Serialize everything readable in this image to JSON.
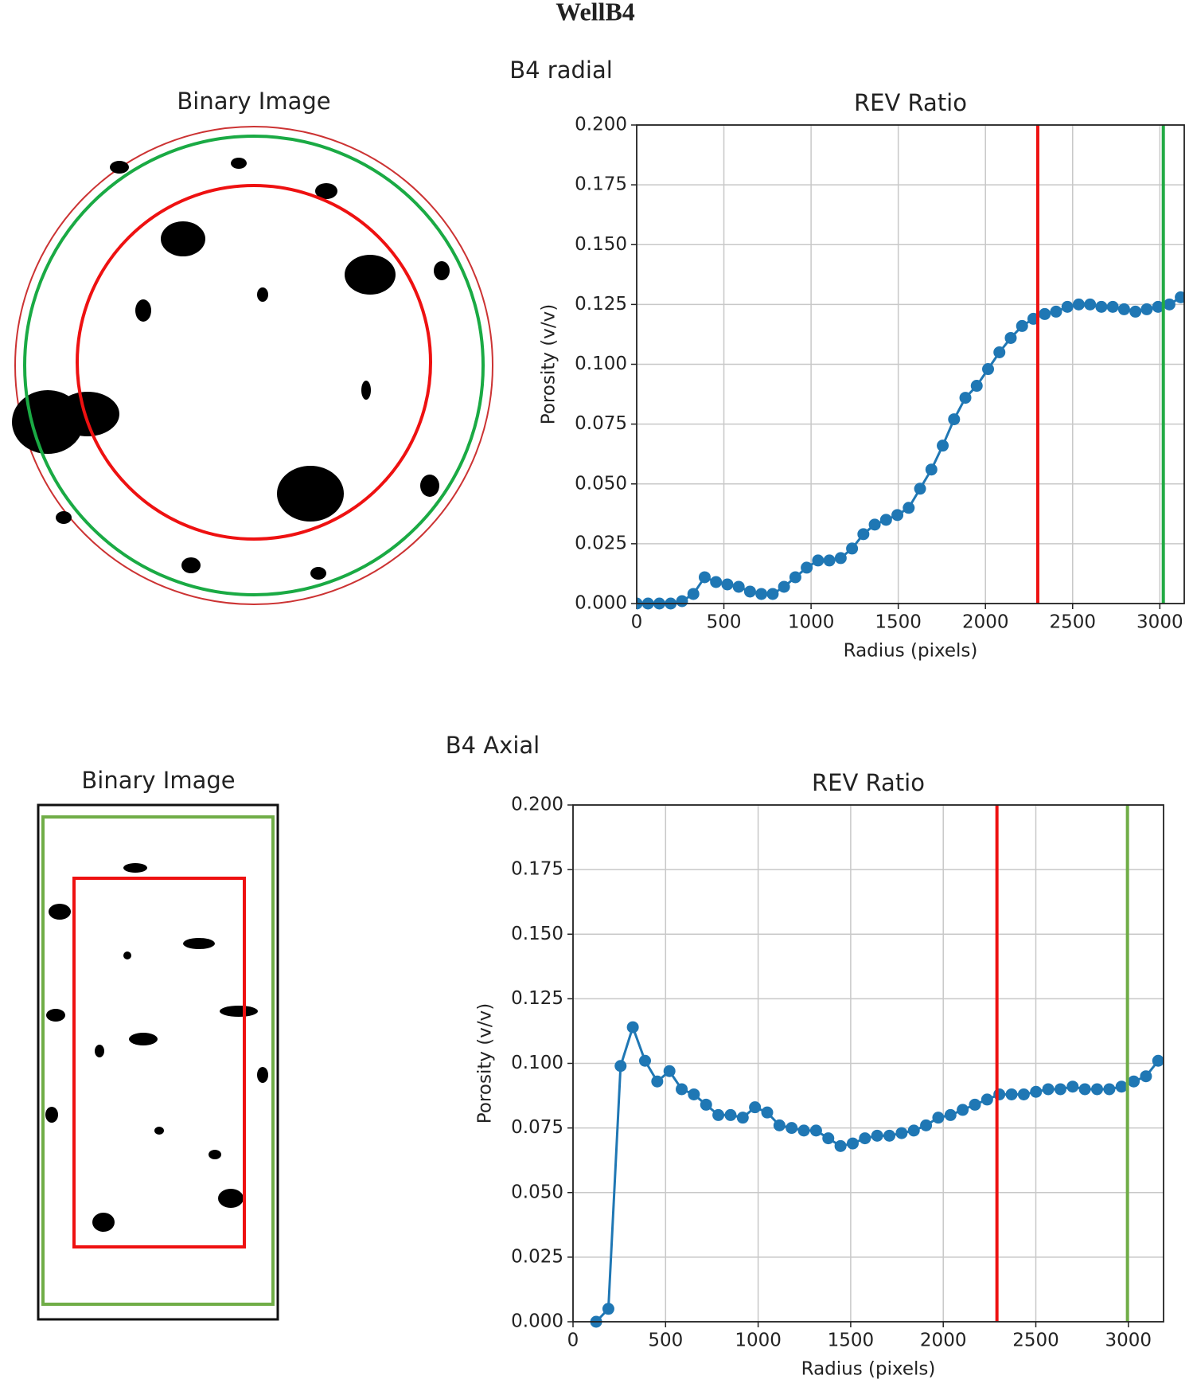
{
  "title": "WellB4",
  "panels": [
    {
      "title": "B4 radial",
      "image_title": "Binary Image"
    },
    {
      "title": "B4 Axial",
      "image_title": "Binary Image"
    }
  ],
  "chart_data": [
    {
      "type": "line",
      "title": "REV Ratio",
      "x_label": "Radius (pixels)",
      "y_label": "Porosity (v/v)",
      "x": [
        0,
        65,
        130,
        195,
        260,
        325,
        390,
        455,
        520,
        585,
        650,
        715,
        780,
        845,
        910,
        975,
        1040,
        1105,
        1170,
        1235,
        1300,
        1365,
        1430,
        1495,
        1560,
        1625,
        1690,
        1755,
        1820,
        1885,
        1950,
        2015,
        2080,
        2145,
        2210,
        2275,
        2340,
        2405,
        2470,
        2535,
        2600,
        2665,
        2730,
        2795,
        2860,
        2925,
        2990,
        3055,
        3120
      ],
      "values": [
        0,
        0,
        0,
        0,
        0.001,
        0.004,
        0.011,
        0.009,
        0.008,
        0.007,
        0.005,
        0.004,
        0.004,
        0.007,
        0.011,
        0.015,
        0.018,
        0.018,
        0.019,
        0.023,
        0.029,
        0.033,
        0.035,
        0.037,
        0.04,
        0.048,
        0.056,
        0.066,
        0.077,
        0.086,
        0.091,
        0.098,
        0.105,
        0.111,
        0.116,
        0.119,
        0.121,
        0.122,
        0.124,
        0.125,
        0.125,
        0.124,
        0.124,
        0.123,
        0.122,
        0.123,
        0.124,
        0.125,
        0.128
      ],
      "color": "#1f77b4",
      "xlim": [
        0,
        3140
      ],
      "xticks": [
        0,
        500,
        1000,
        1500,
        2000,
        2500,
        3000
      ],
      "ylim": [
        0,
        0.2
      ],
      "yticks": [
        {
          "value": 0,
          "label": "0.000"
        },
        {
          "value": 0.025,
          "label": "0.025"
        },
        {
          "value": 0.05,
          "label": "0.050"
        },
        {
          "value": 0.075,
          "label": "0.075"
        },
        {
          "value": 0.1,
          "label": "0.100"
        },
        {
          "value": 0.125,
          "label": "0.125"
        },
        {
          "value": 0.15,
          "label": "0.150"
        },
        {
          "value": 0.175,
          "label": "0.175"
        },
        {
          "value": 0.2,
          "label": "0.200"
        }
      ],
      "grid": true,
      "vlines": [
        {
          "value": 2300,
          "color": "#ee1111"
        },
        {
          "value": 3020,
          "color": "#22aa44"
        }
      ]
    },
    {
      "type": "line",
      "title": "REV Ratio",
      "x_label": "Radius (pixels)",
      "y_label": "Porosity (v/v)",
      "x": [
        125,
        191,
        257,
        323,
        389,
        455,
        521,
        587,
        653,
        719,
        785,
        851,
        917,
        983,
        1049,
        1115,
        1181,
        1247,
        1313,
        1379,
        1445,
        1511,
        1577,
        1643,
        1709,
        1775,
        1841,
        1907,
        1973,
        2039,
        2105,
        2171,
        2237,
        2303,
        2369,
        2435,
        2501,
        2567,
        2633,
        2699,
        2765,
        2831,
        2897,
        2963,
        3029,
        3095,
        3161
      ],
      "values": [
        0,
        0.005,
        0.099,
        0.114,
        0.101,
        0.093,
        0.097,
        0.09,
        0.088,
        0.084,
        0.08,
        0.08,
        0.079,
        0.083,
        0.081,
        0.076,
        0.075,
        0.074,
        0.074,
        0.071,
        0.068,
        0.069,
        0.071,
        0.072,
        0.072,
        0.073,
        0.074,
        0.076,
        0.079,
        0.08,
        0.082,
        0.084,
        0.086,
        0.088,
        0.088,
        0.088,
        0.089,
        0.09,
        0.09,
        0.091,
        0.09,
        0.09,
        0.09,
        0.091,
        0.093,
        0.095,
        0.101
      ],
      "color": "#1f77b4",
      "xlim": [
        0,
        3190
      ],
      "xticks": [
        0,
        500,
        1000,
        1500,
        2000,
        2500,
        3000
      ],
      "ylim": [
        0,
        0.2
      ],
      "yticks": [
        {
          "value": 0,
          "label": "0.000"
        },
        {
          "value": 0.025,
          "label": "0.025"
        },
        {
          "value": 0.05,
          "label": "0.050"
        },
        {
          "value": 0.075,
          "label": "0.075"
        },
        {
          "value": 0.1,
          "label": "0.100"
        },
        {
          "value": 0.125,
          "label": "0.125"
        },
        {
          "value": 0.15,
          "label": "0.150"
        },
        {
          "value": 0.175,
          "label": "0.175"
        },
        {
          "value": 0.2,
          "label": "0.200"
        }
      ],
      "grid": true,
      "vlines": [
        {
          "value": 2290,
          "color": "#ee1111"
        },
        {
          "value": 2995,
          "color": "#70ad47"
        }
      ]
    }
  ]
}
